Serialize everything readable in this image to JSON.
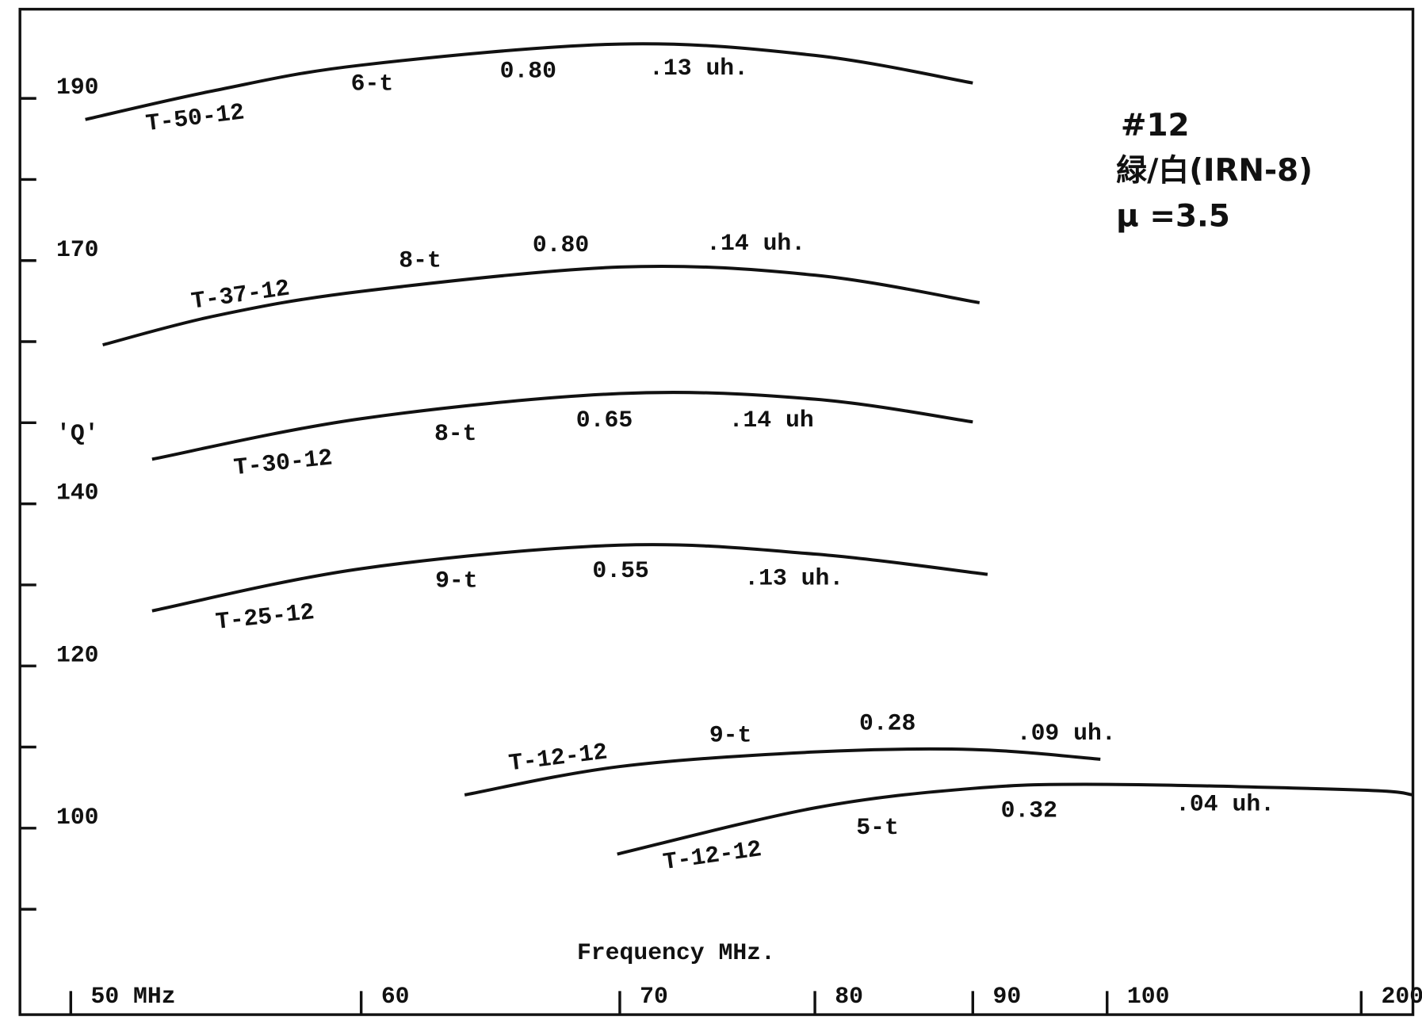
{
  "chart_data": {
    "type": "line",
    "xlabel": "Frequency  MHz.",
    "ylabel": "'Q'",
    "annotations": [
      "#12",
      "緑/白(IRN-8)",
      "μ =3.5"
    ],
    "xlim": [
      48,
      220
    ],
    "ylim": [
      77,
      201
    ],
    "xticks": [
      {
        "value": 50,
        "label": "50 MHz"
      },
      60,
      70,
      80,
      90,
      100,
      200
    ],
    "yticks": [
      190,
      {
        "value": 180,
        "label": null
      },
      170,
      {
        "value": 160,
        "label": null
      },
      {
        "value": 150,
        "label": null
      },
      140,
      {
        "value": 130,
        "label": null
      },
      120,
      {
        "value": 110,
        "label": null
      },
      100,
      {
        "value": 90,
        "label": null
      }
    ],
    "series": [
      {
        "name": "T-50-12",
        "turns": "6-t",
        "ratio": "0.80",
        "inductance": ".13 uh.",
        "color": "#111111",
        "x": [
          50.5,
          55,
          60,
          70,
          80,
          90
        ],
        "values": [
          187.4,
          191.0,
          194.1,
          196.7,
          195.3,
          191.9
        ]
      },
      {
        "name": "T-37-12",
        "turns": "8-t",
        "ratio": "0.80",
        "inductance": ".14 uh.",
        "color": "#111111",
        "x": [
          51.1,
          55,
          60,
          70,
          80,
          90.5
        ],
        "values": [
          159.6,
          163.2,
          166.2,
          169.2,
          168.2,
          164.8
        ]
      },
      {
        "name": "T-30-12",
        "turns": "8-t",
        "ratio": "0.65",
        "inductance": ".14 uh",
        "color": "#111111",
        "x": [
          52.8,
          60,
          70,
          80,
          90
        ],
        "values": [
          145.5,
          150.5,
          153.6,
          152.9,
          150.1
        ]
      },
      {
        "name": "T-25-12",
        "turns": "9-t",
        "ratio": "0.55",
        "inductance": ".13 uh.",
        "color": "#111111",
        "x": [
          52.8,
          60,
          70,
          80,
          91.1
        ],
        "values": [
          126.8,
          132.0,
          134.9,
          133.8,
          131.3
        ]
      },
      {
        "name": "T-12-12",
        "turns": "9-t",
        "ratio": "0.28",
        "inductance": ".09 uh.",
        "color": "#111111",
        "x": [
          64.0,
          70,
          80,
          90,
          99.5
        ],
        "values": [
          104.1,
          107.6,
          109.4,
          109.7,
          108.5
        ]
      },
      {
        "name": "T-12-12",
        "turns": "5-t",
        "ratio": "0.32",
        "inductance": ".04 uh.",
        "color": "#111111",
        "x": [
          69.9,
          80,
          90,
          100,
          200,
          220
        ],
        "values": [
          96.8,
          102.5,
          104.9,
          105.4,
          104.7,
          104.1
        ]
      }
    ]
  }
}
